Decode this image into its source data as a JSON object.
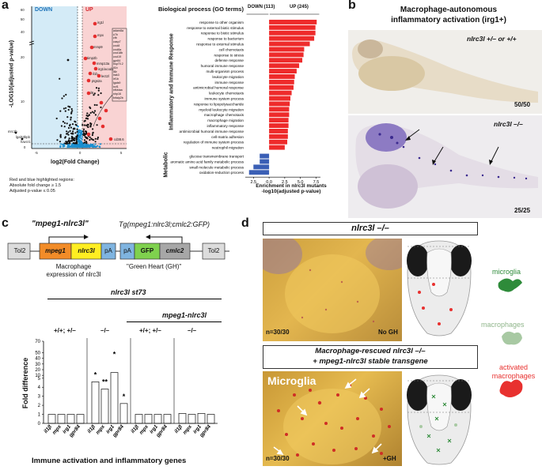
{
  "panel_a": {
    "letter": "a",
    "down_label": "DOWN",
    "up_label": "UP",
    "y_axis_label": "-LOG10(adjusted p-value)",
    "x_axis_label": "log2(Fold Change)",
    "x_ticks": [
      "-5",
      "0",
      "5"
    ],
    "y_ticks": [
      "0",
      "5",
      "10",
      "15",
      "20",
      "25",
      "30",
      "35",
      "40",
      "50",
      "60"
    ],
    "note_lines": [
      "Red and blue highlighted regions:",
      "Absolute fold change ≥ 1.5",
      "Adjusted p-value ≤ 0.05"
    ],
    "gene_labels_left": [
      "mrc1b",
      "lgals3bpb",
      "havcr1"
    ],
    "gene_labels_top": [
      "irg1l",
      "mpx",
      "mmp9",
      "timp2b",
      "mmp13a",
      "irg1/acod1",
      "il1b",
      "lect2l"
    ],
    "gene_labels_mid": [
      "ptgs2a",
      "il6",
      "cd38.6"
    ],
    "boxed_genes": [
      "adam8a",
      "c7b",
      "cfb",
      "casp7",
      "cxcl8",
      "cxcl8a",
      "cxcl18b",
      "cxcl19",
      "gpr84",
      "hsp70.2",
      "il1b",
      "il6r",
      "irak3",
      "irf1b",
      "lgals9",
      "ncf1",
      "nfkbiaa",
      "nlrp16",
      "tnfaip2b"
    ],
    "go_title": "Biological process (GO terms)",
    "down_count": "DOWN (113)",
    "up_count": "UP (245)",
    "category_inflammatory": "Inflammatory and Immune Response",
    "category_metabolic": "Metabolic",
    "go_x_label": "Enrichment in nlrc3l mutants",
    "go_x_label2": "-log10(adjusted p-value)",
    "go_x_ticks": [
      "2.5",
      "0.0",
      "2.5",
      "5.0",
      "7.5"
    ]
  },
  "chart_data": {
    "type": "bar",
    "title": "Biological process (GO terms)",
    "categories": [
      "response to other organism",
      "response to external biotic stimulus",
      "response to biotic stimulus",
      "response to bacterium",
      "response to external stimulus",
      "cell chemotaxis",
      "response to stress",
      "defense response",
      "humoral immune response",
      "multi-organism process",
      "leukocyte migration",
      "immune response",
      "antimicrobial humoral response",
      "leukocyte chemotaxis",
      "immune system process",
      "response to lipopolysaccharide",
      "myeloid leukocyte migration",
      "macrophage chemotaxis",
      "macrophage migration",
      "inflammatory response",
      "antimicrobial humoral immune response",
      "cell-matrix adhesion",
      "regulation of immune system process",
      "neutrophil migration",
      "glucose transmembrane transport",
      "aromatic amino acid family metabolic process",
      "small molecule metabolic process",
      "oxidation-reduction process"
    ],
    "values": [
      7.6,
      7.4,
      7.4,
      7.2,
      6.5,
      5.6,
      5.5,
      5.3,
      4.8,
      4.4,
      4.1,
      4.0,
      3.9,
      3.6,
      3.4,
      3.3,
      3.2,
      3.2,
      3.1,
      3.1,
      3.0,
      3.0,
      2.9,
      2.5,
      -1.5,
      -1.5,
      -2.5,
      -3.2
    ],
    "xlim": [
      -3.8,
      8.2
    ],
    "xlabel": "Enrichment in nlrc3l mutants -log10(adjusted p-value)",
    "colors": {
      "up": "#ee2b2b",
      "down": "#3a5fb5"
    }
  },
  "panel_b": {
    "letter": "b",
    "title_line1": "Macrophage-autonomous",
    "title_line2": "inflammatory activation (irg1+)",
    "label_top": "nlrc3l +/– or +/+",
    "count_top": "50/50",
    "label_bottom": "nlrc3l –/–",
    "count_bottom": "25/25"
  },
  "panel_c": {
    "letter": "c",
    "construct_name": "\"mpeg1-nlrc3l\"",
    "construct_tg": "Tg(mpeg1:nlrc3l;cmlc2:GFP)",
    "boxes": [
      "Tol2",
      "mpeg1",
      "nlrc3l",
      "pA",
      "pA",
      "GFP",
      "cmlc2",
      "Tol2"
    ],
    "caption_left_1": "Macrophage",
    "caption_left_2": "expression of nlrc3l",
    "caption_right": "\"Green Heart (GH)\"",
    "allele_label": "nlrc3l st73",
    "transgene_label": "mpeg1-nlrc3l",
    "genotype_groups": [
      "+/+; +/–",
      "–/–",
      "+/+; +/–",
      "–/–"
    ],
    "y_label": "Fold difference",
    "y_ticks": [
      "0",
      "1",
      "2",
      "3",
      "4",
      "5",
      "10",
      "20",
      "30",
      "40",
      "50",
      "70"
    ],
    "genes": [
      "il1β",
      "mpx",
      "irg1",
      "gpr84"
    ],
    "x_title": "Immune activation and inflammatory genes",
    "significance": [
      "*",
      "**",
      "*",
      "*"
    ]
  },
  "fold_data": {
    "type": "bar",
    "groups": [
      "+/+; +/–",
      "–/–",
      "+/+; +/–",
      "–/–"
    ],
    "genes": [
      "il1β",
      "mpx",
      "irg1",
      "gpr84"
    ],
    "values": [
      [
        1.0,
        1.0,
        1.0,
        1.0
      ],
      [
        4.6,
        3.8,
        15.0,
        2.2
      ],
      [
        1.0,
        1.0,
        1.0,
        1.0
      ],
      [
        1.1,
        1.0,
        1.1,
        1.0
      ]
    ]
  },
  "panel_d": {
    "letter": "d",
    "box1_title": "nlrc3l –/–",
    "img1_n": "n=30/30",
    "img1_gh": "No GH",
    "box2_title_line1": "Macrophage-rescued nlrc3l –/–",
    "box2_title_line2": "+ mpeg1-nlrc3l stable transgene",
    "img2_label": "Microglia",
    "img2_n": "n=30/30",
    "img2_gh": "+GH",
    "legend": [
      "microglia",
      "macrophages",
      "activated macrophages"
    ],
    "legend_colors": [
      "#2e8b3a",
      "#a8c9a3",
      "#e8312f"
    ]
  }
}
